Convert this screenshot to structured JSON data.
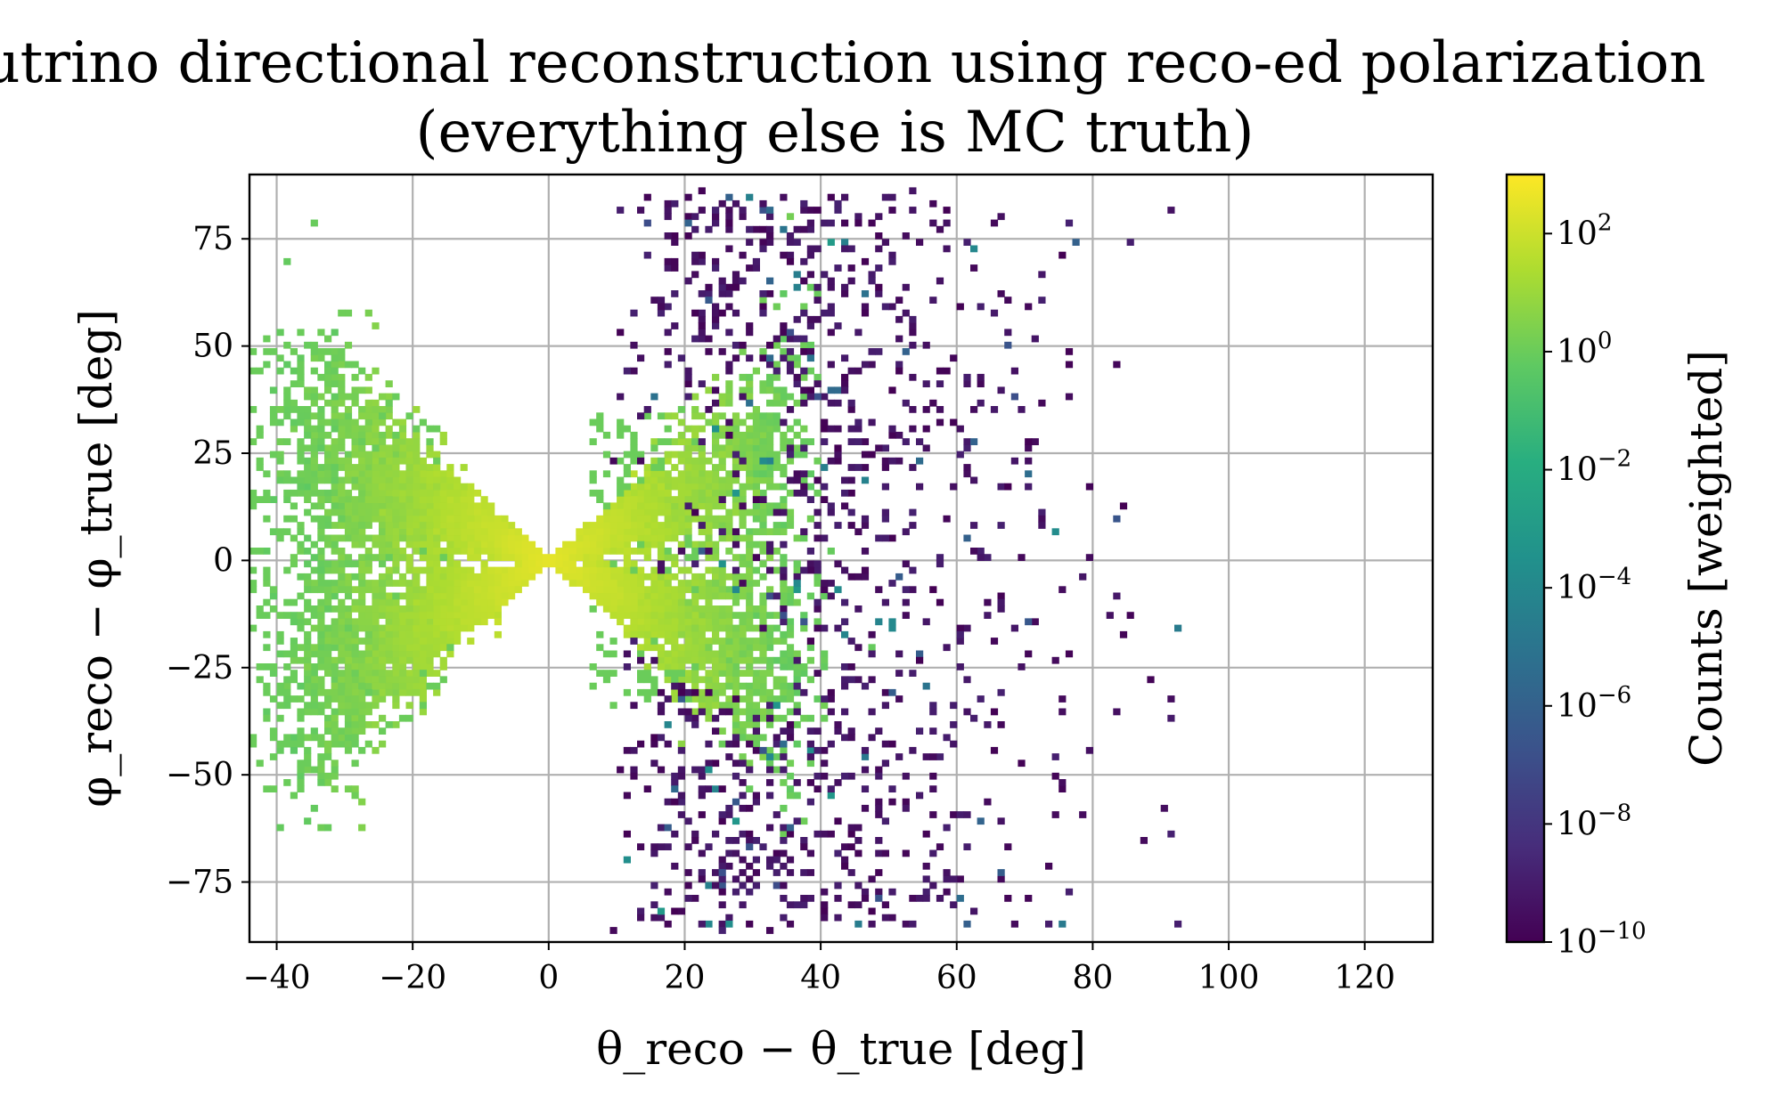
{
  "chart_data": {
    "type": "heatmap",
    "title_line1": "Neutrino directional reconstruction using reco-ed polarization",
    "title_line2": "(everything else is MC truth)",
    "xlabel": "θ_reco − θ_true [deg]",
    "ylabel": "φ_reco − φ_true [deg]",
    "xlim": [
      -44,
      130
    ],
    "ylim": [
      -89,
      90
    ],
    "xticks": [
      -40,
      -20,
      0,
      20,
      40,
      60,
      80,
      100,
      120
    ],
    "xtick_labels": [
      "−40",
      "−20",
      "0",
      "20",
      "40",
      "60",
      "80",
      "100",
      "120"
    ],
    "yticks": [
      75,
      50,
      25,
      0,
      -25,
      -50,
      -75
    ],
    "ytick_labels": [
      "75",
      "50",
      "25",
      "0",
      "−25",
      "−50",
      "−75"
    ],
    "grid": true,
    "bin_size": [
      1,
      1.5
    ],
    "colorbar": {
      "label": "Counts [weighted]",
      "scale": "log",
      "log10_range": [
        -10,
        3
      ],
      "colormap": "viridis",
      "ticks": [
        {
          "exp": 2,
          "label": "10",
          "sup": "2"
        },
        {
          "exp": 0,
          "label": "10",
          "sup": "0"
        },
        {
          "exp": -2,
          "label": "10",
          "sup": "−2"
        },
        {
          "exp": -4,
          "label": "10",
          "sup": "−4"
        },
        {
          "exp": -6,
          "label": "10",
          "sup": "−6"
        },
        {
          "exp": -8,
          "label": "10",
          "sup": "−8"
        },
        {
          "exp": -10,
          "label": "10",
          "sup": "−10"
        }
      ]
    },
    "components": [
      {
        "name": "central X-shaped core (high counts)",
        "theta_range": [
          -44,
          22
        ],
        "phi_range": [
          -70,
          55
        ],
        "arms": [
          {
            "theta": -10,
            "phi": 12
          },
          {
            "theta": -10,
            "phi": -12
          },
          {
            "theta": 10,
            "phi": 12
          },
          {
            "theta": 10,
            "phi": -12
          }
        ],
        "log10_count_peak": 2.5,
        "log10_count_edge": 0.0
      },
      {
        "name": "sparse low-weight scatter",
        "theta_range": [
          8,
          93
        ],
        "phi_range": [
          -86,
          86
        ],
        "log10_count_typical": -10,
        "log10_count_max": -3
      }
    ]
  }
}
